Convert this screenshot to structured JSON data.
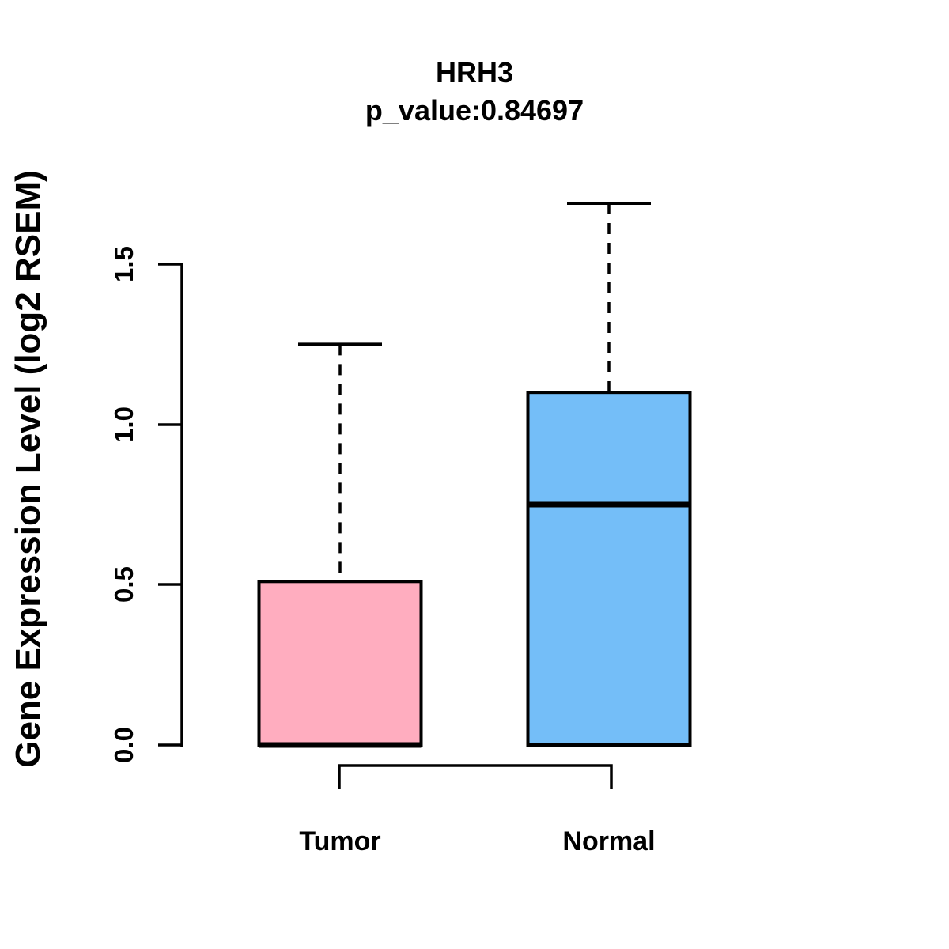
{
  "figure": {
    "background": "#FFFFFF",
    "text_color": "#000000"
  },
  "chart_data": {
    "type": "boxplot",
    "title": "HRH3",
    "subtitle": "p_value:0.84697",
    "gene": "HRH3",
    "p_value": 0.84697,
    "ylabel": "Gene Expression Level (log2 RSEM)",
    "xlabel": "",
    "categories": [
      "Tumor",
      "Normal"
    ],
    "ytick_labels": [
      "0.0",
      "0.5",
      "1.0",
      "1.5"
    ],
    "ylim": [
      -0.07,
      1.75
    ],
    "grid": false,
    "legend_position": "none",
    "boxes": [
      {
        "label": "Tumor",
        "fill_color": "#FFADBF",
        "border_color": "#000000",
        "whisker_low": 0.0,
        "q1": 0.0,
        "median": 0.0,
        "q3": 0.51,
        "whisker_high": 1.25
      },
      {
        "label": "Normal",
        "fill_color": "#74BEF8",
        "border_color": "#000000",
        "whisker_low": 0.0,
        "q1": 0.0,
        "median": 0.75,
        "q3": 1.1,
        "whisker_high": 1.69
      }
    ]
  }
}
